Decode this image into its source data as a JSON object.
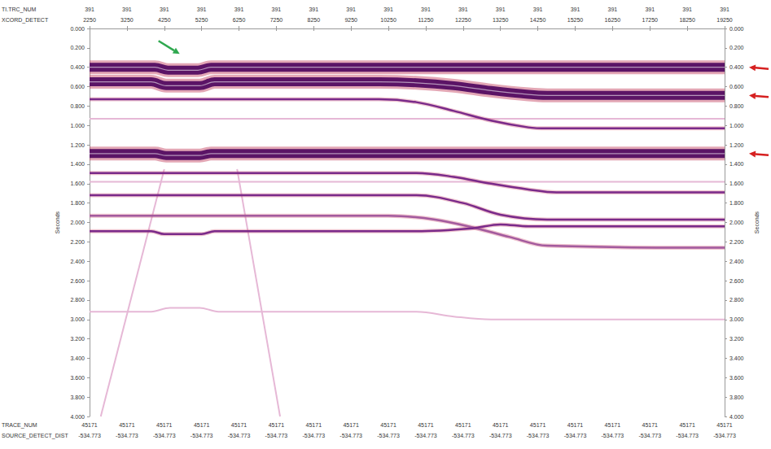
{
  "chart_data": {
    "type": "seismic",
    "ylabel": "Seconds",
    "grid": false,
    "xlim": [
      2250,
      19250
    ],
    "xticks": [
      2250,
      3250,
      4250,
      5250,
      6250,
      7250,
      8250,
      9250,
      10250,
      11250,
      12250,
      13250,
      14250,
      15250,
      16250,
      17250,
      18250,
      19250
    ],
    "top_rows": [
      {
        "label": "TI.TRC_NUM",
        "values": [
          391,
          391,
          391,
          391,
          391,
          391,
          391,
          391,
          391,
          391,
          391,
          391,
          391,
          391,
          391,
          391,
          391,
          391
        ]
      },
      {
        "label": "XCORD_DETECT",
        "values": [
          2250,
          3250,
          4250,
          5250,
          6250,
          7250,
          8250,
          9250,
          10250,
          11250,
          12250,
          13250,
          14250,
          15250,
          16250,
          17250,
          18250,
          19250
        ]
      }
    ],
    "bottom_rows": [
      {
        "label": "TRACE_NUM",
        "values": [
          45171,
          45171,
          45171,
          45171,
          45171,
          45171,
          45171,
          45171,
          45171,
          45171,
          45171,
          45171,
          45171,
          45171,
          45171,
          45171,
          45171,
          45171
        ]
      },
      {
        "label": "SOURCE_DETECT_DIST",
        "values": [
          -534.773,
          -534.773,
          -534.773,
          -534.773,
          -534.773,
          -534.773,
          -534.773,
          -534.773,
          -534.773,
          -534.773,
          -534.773,
          -534.773,
          -534.773,
          -534.773,
          -534.773,
          -534.773,
          -534.773,
          -534.773
        ]
      }
    ],
    "ylim": [
      0,
      4
    ],
    "yticks": [
      {
        "value": 0,
        "label": "0.000"
      },
      {
        "value": 0.2,
        "label": "0.200"
      },
      {
        "value": 0.4,
        "label": "0.400"
      },
      {
        "value": 0.6,
        "label": "0.600"
      },
      {
        "value": 0.8,
        "label": "0.800"
      },
      {
        "value": 1.0,
        "label": "1.000"
      },
      {
        "value": 1.2,
        "label": "1.200"
      },
      {
        "value": 1.4,
        "label": "1.400"
      },
      {
        "value": 1.6,
        "label": "1.600"
      },
      {
        "value": 1.8,
        "label": "1.800"
      },
      {
        "value": 2.0,
        "label": "2.000"
      },
      {
        "value": 2.2,
        "label": "2.200"
      },
      {
        "value": 2.4,
        "label": "2.400"
      },
      {
        "value": 2.6,
        "label": "2.600"
      },
      {
        "value": 2.8,
        "label": "2.800"
      },
      {
        "value": 3.0,
        "label": "3.000"
      },
      {
        "value": 3.2,
        "label": "3.200"
      },
      {
        "value": 3.4,
        "label": "3.400"
      },
      {
        "value": 3.6,
        "label": "3.600"
      },
      {
        "value": 3.8,
        "label": "3.800"
      },
      {
        "value": 4.0,
        "label": "4.000"
      }
    ],
    "series": [
      {
        "color": "#e6b8d6",
        "line_style": "faint",
        "x": [
          4250,
          2550
        ],
        "values": [
          1.45,
          4.0
        ]
      },
      {
        "color": "#e6b8d6",
        "line_style": "faint",
        "x": [
          6200,
          7350
        ],
        "values": [
          1.45,
          4.0
        ]
      },
      {
        "color": "#e6b8d6",
        "line_style": "faint",
        "x": [
          2250,
          19250
        ],
        "values": [
          0.93,
          0.93
        ]
      },
      {
        "color": "#e6b8d6",
        "line_style": "faint",
        "x": [
          2250,
          19250
        ],
        "values": [
          1.58,
          1.58
        ]
      },
      {
        "color": "#e6b8d6",
        "line_style": "faint",
        "x": [
          2250,
          3900,
          4400,
          5200,
          5700,
          11000,
          12000,
          13000,
          19250
        ],
        "values": [
          2.92,
          2.92,
          2.88,
          2.88,
          2.92,
          2.92,
          2.97,
          3.0,
          3.0
        ]
      },
      {
        "color": "#7a2a8a",
        "line_style": "thin",
        "x": [
          2250,
          10000,
          11000,
          12000,
          13000,
          14000,
          14500,
          19250
        ],
        "values": [
          0.73,
          0.73,
          0.76,
          0.85,
          0.95,
          1.02,
          1.03,
          1.03
        ]
      },
      {
        "color": "#7a2a8a",
        "line_style": "thin",
        "x": [
          2250,
          11000,
          12000,
          13000,
          14000,
          14750,
          19250
        ],
        "values": [
          1.49,
          1.49,
          1.53,
          1.6,
          1.66,
          1.69,
          1.69
        ]
      },
      {
        "color": "#7a2a8a",
        "line_style": "thin",
        "x": [
          2250,
          11000,
          12250,
          13250,
          14500,
          19250
        ],
        "values": [
          1.72,
          1.72,
          1.8,
          1.92,
          1.97,
          1.97
        ]
      },
      {
        "color": "#a35a9e",
        "line_style": "thin",
        "x": [
          2250,
          10250,
          11500,
          12500,
          13500,
          14500,
          19250
        ],
        "values": [
          1.93,
          1.93,
          1.97,
          2.05,
          2.15,
          2.24,
          2.26
        ]
      },
      {
        "color": "#7a2a8a",
        "line_style": "thin",
        "x": [
          2250,
          3900,
          4250,
          5250,
          5600,
          11000,
          12500,
          13250,
          14000,
          19250
        ],
        "values": [
          2.09,
          2.09,
          2.12,
          2.12,
          2.09,
          2.09,
          2.06,
          2.02,
          2.04,
          2.04
        ]
      },
      {
        "color": "#5b1466",
        "line_style": "thick",
        "x": [
          2250,
          4000,
          4350,
          5150,
          5500,
          19250
        ],
        "values": [
          0.4,
          0.4,
          0.43,
          0.43,
          0.4,
          0.4
        ]
      },
      {
        "color": "#5b1466",
        "line_style": "thick",
        "x": [
          2250,
          3900,
          4300,
          5200,
          5600,
          10000,
          11000,
          12000,
          13000,
          14000,
          14500,
          19250
        ],
        "values": [
          0.55,
          0.55,
          0.59,
          0.59,
          0.55,
          0.55,
          0.56,
          0.59,
          0.64,
          0.68,
          0.69,
          0.69
        ]
      },
      {
        "color": "#5b1466",
        "line_style": "thick",
        "x": [
          2250,
          4000,
          4300,
          5200,
          5500,
          19250
        ],
        "values": [
          1.29,
          1.29,
          1.31,
          1.31,
          1.29,
          1.29
        ]
      }
    ]
  }
}
